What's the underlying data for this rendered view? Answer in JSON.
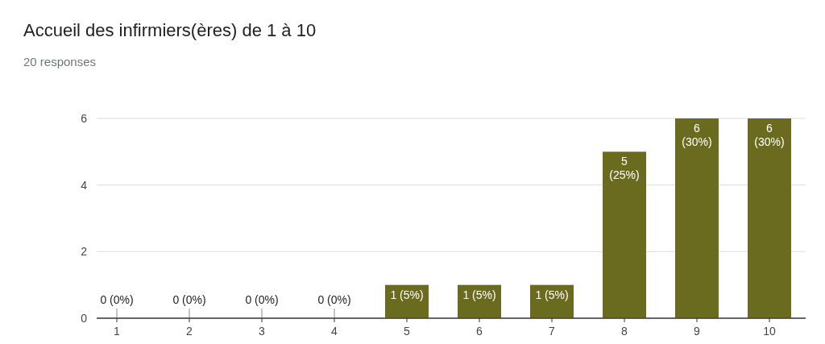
{
  "chart_data": {
    "type": "bar",
    "title": "Accueil des infirmiers(ères) de 1 à 10",
    "subtitle": "20 responses",
    "categories": [
      "1",
      "2",
      "3",
      "4",
      "5",
      "6",
      "7",
      "8",
      "9",
      "10"
    ],
    "values": [
      0,
      0,
      0,
      0,
      1,
      1,
      1,
      5,
      6,
      6
    ],
    "value_labels": [
      "0 (0%)",
      "0 (0%)",
      "0 (0%)",
      "0 (0%)",
      "1 (5%)",
      "1 (5%)",
      "1 (5%)",
      "5 (25%)",
      "6 (30%)",
      "6 (30%)"
    ],
    "color": "#6b6b1f",
    "ylim": [
      0,
      6
    ],
    "yticks": [
      0,
      2,
      4,
      6
    ],
    "grid": "y"
  }
}
